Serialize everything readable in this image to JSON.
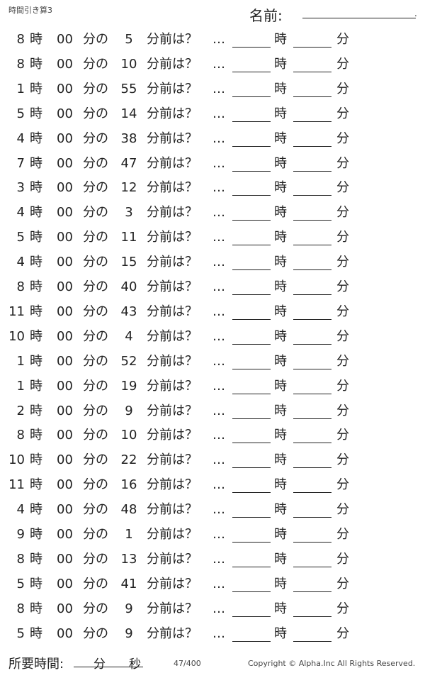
{
  "header": {
    "title": "時間引き算3",
    "name_label": "名前:",
    "name_end": "."
  },
  "labels": {
    "hour": "時",
    "zero": "00",
    "min_of": "分の",
    "min_before": "分前は？",
    "dots": "…",
    "ans_hour": "時",
    "ans_min": "分"
  },
  "problems": [
    {
      "hour": "8",
      "minutes": "5"
    },
    {
      "hour": "8",
      "minutes": "10"
    },
    {
      "hour": "1",
      "minutes": "55"
    },
    {
      "hour": "5",
      "minutes": "14"
    },
    {
      "hour": "4",
      "minutes": "38"
    },
    {
      "hour": "7",
      "minutes": "47"
    },
    {
      "hour": "3",
      "minutes": "12"
    },
    {
      "hour": "4",
      "minutes": "3"
    },
    {
      "hour": "5",
      "minutes": "11"
    },
    {
      "hour": "4",
      "minutes": "15"
    },
    {
      "hour": "8",
      "minutes": "40"
    },
    {
      "hour": "11",
      "minutes": "43"
    },
    {
      "hour": "10",
      "minutes": "4"
    },
    {
      "hour": "1",
      "minutes": "52"
    },
    {
      "hour": "1",
      "minutes": "19"
    },
    {
      "hour": "2",
      "minutes": "9"
    },
    {
      "hour": "8",
      "minutes": "10"
    },
    {
      "hour": "10",
      "minutes": "22"
    },
    {
      "hour": "11",
      "minutes": "16"
    },
    {
      "hour": "4",
      "minutes": "48"
    },
    {
      "hour": "9",
      "minutes": "1"
    },
    {
      "hour": "8",
      "minutes": "13"
    },
    {
      "hour": "5",
      "minutes": "41"
    },
    {
      "hour": "8",
      "minutes": "9"
    },
    {
      "hour": "5",
      "minutes": "9"
    }
  ],
  "footer": {
    "time_label": "所要時間:",
    "min": "分",
    "sec": "秒",
    "page": "47/400",
    "copyright": "Copyright ©  Alpha.Inc All Rights Reserved."
  }
}
